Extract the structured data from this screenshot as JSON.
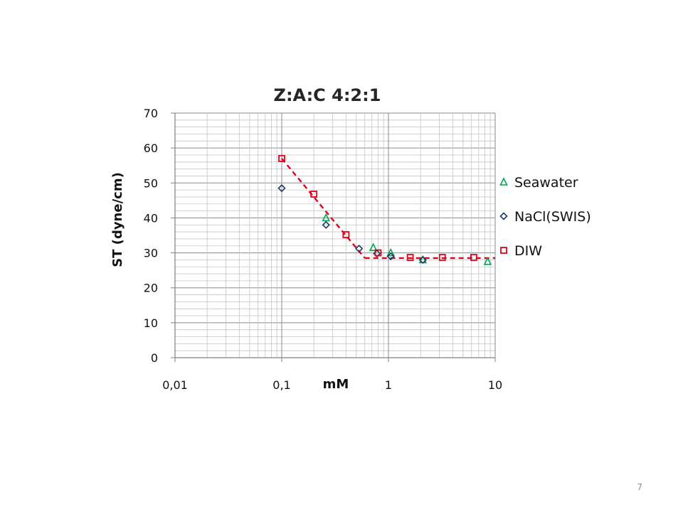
{
  "slide": {
    "page_number": "7"
  },
  "chart_data": {
    "type": "scatter",
    "title": "Z:A:C 4:2:1",
    "xlabel": "mM",
    "ylabel": "ST (dyne/cm)",
    "x_scale": "log",
    "xlim": [
      0.01,
      10
    ],
    "ylim": [
      0,
      70
    ],
    "x_ticks": [
      0.01,
      0.1,
      1,
      10
    ],
    "x_tick_labels": [
      "0,01",
      "0,1",
      "1",
      "10"
    ],
    "y_ticks": [
      0,
      10,
      20,
      30,
      40,
      50,
      60,
      70
    ],
    "y_tick_labels": [
      "0",
      "10",
      "20",
      "30",
      "40",
      "50",
      "60",
      "70"
    ],
    "grid": true,
    "legend_position": "right",
    "series": [
      {
        "name": "Seawater",
        "marker": "triangle",
        "color": "#00a651",
        "points": [
          [
            0.26,
            40
          ],
          [
            0.72,
            31.5
          ],
          [
            1.05,
            30
          ],
          [
            2.1,
            28
          ],
          [
            8.5,
            27.5
          ]
        ]
      },
      {
        "name": "NaCl(SWIS)",
        "marker": "diamond",
        "color": "#1f3864",
        "points": [
          [
            0.1,
            48.5
          ],
          [
            0.26,
            38
          ],
          [
            0.53,
            31.2
          ],
          [
            0.78,
            29.8
          ],
          [
            1.05,
            29
          ],
          [
            2.1,
            28
          ]
        ]
      },
      {
        "name": "DIW",
        "marker": "square",
        "color": "#e3001b",
        "points": [
          [
            0.1,
            57
          ],
          [
            0.2,
            46.8
          ],
          [
            0.4,
            35.2
          ],
          [
            0.8,
            30
          ],
          [
            1.6,
            28.7
          ],
          [
            3.2,
            28.7
          ],
          [
            6.3,
            28.7
          ]
        ]
      }
    ],
    "trend_lines": [
      {
        "color": "#e3001b",
        "style": "dashed",
        "points": [
          [
            0.1,
            57
          ],
          [
            0.6,
            28.5
          ]
        ]
      },
      {
        "color": "#e3001b",
        "style": "dashed",
        "points": [
          [
            0.6,
            28.5
          ],
          [
            10,
            28.5
          ]
        ]
      }
    ]
  }
}
